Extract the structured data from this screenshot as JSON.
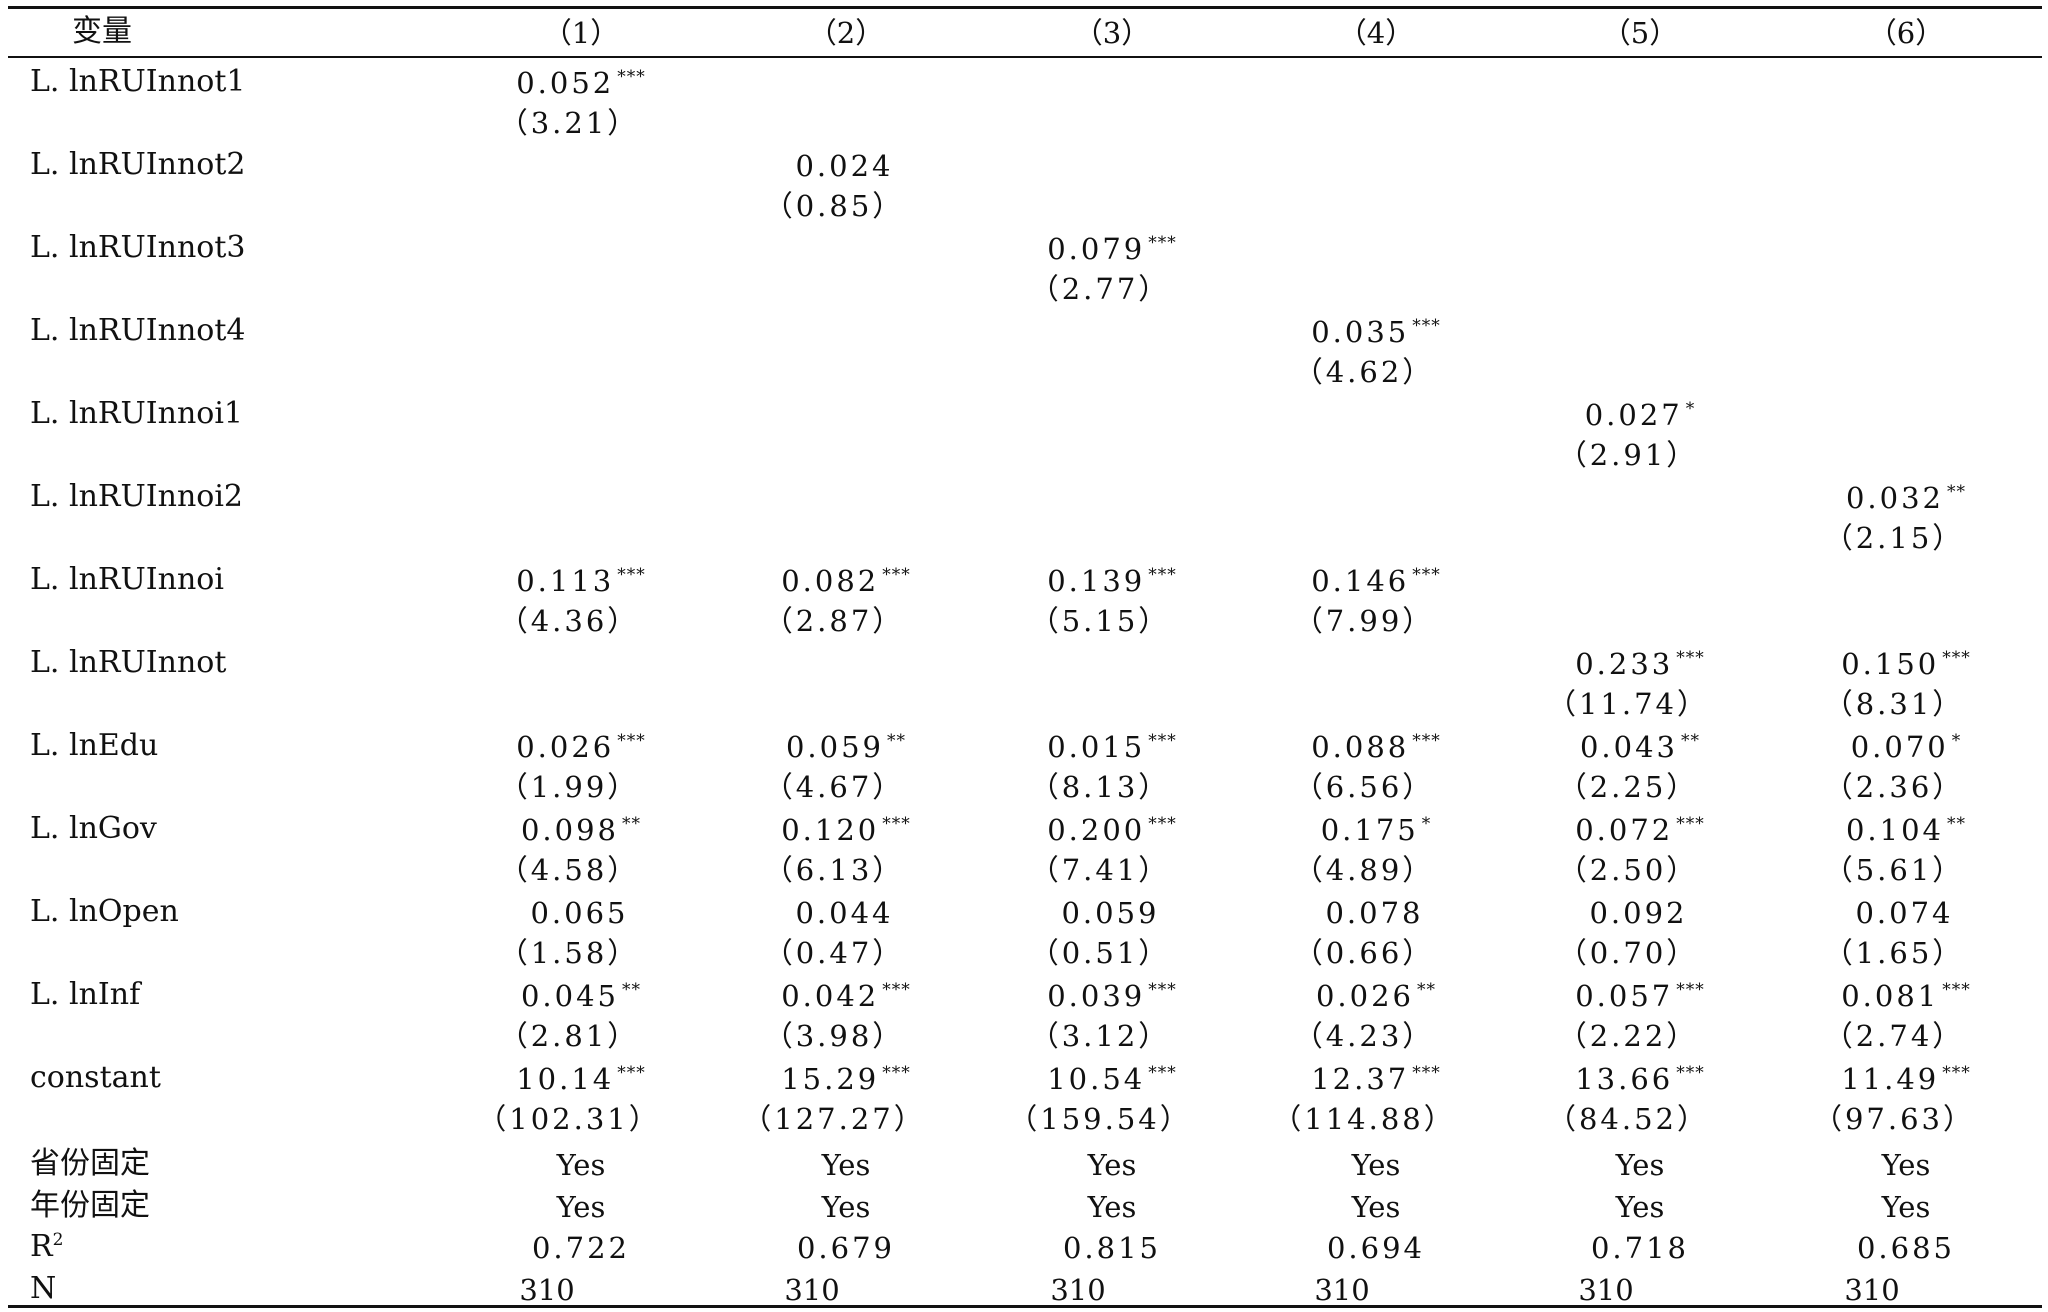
{
  "table": {
    "header": {
      "variable": "变量",
      "columns": [
        "（1）",
        "（2）",
        "（3）",
        "（4）",
        "（5）",
        "（6）"
      ]
    },
    "rows": [
      {
        "label": "L. lnRUInnot1",
        "coef": [
          {
            "v": "0.052",
            "s": "***"
          },
          null,
          null,
          null,
          null,
          null
        ],
        "se": [
          "（3.21）",
          null,
          null,
          null,
          null,
          null
        ]
      },
      {
        "label": "L. lnRUInnot2",
        "coef": [
          null,
          {
            "v": "0.024",
            "s": ""
          },
          null,
          null,
          null,
          null
        ],
        "se": [
          null,
          "（0.85）",
          null,
          null,
          null,
          null
        ]
      },
      {
        "label": "L. lnRUInnot3",
        "coef": [
          null,
          null,
          {
            "v": "0.079",
            "s": "***"
          },
          null,
          null,
          null
        ],
        "se": [
          null,
          null,
          "（2.77）",
          null,
          null,
          null
        ]
      },
      {
        "label": "L. lnRUInnot4",
        "coef": [
          null,
          null,
          null,
          {
            "v": "0.035",
            "s": "***"
          },
          null,
          null
        ],
        "se": [
          null,
          null,
          null,
          "（4.62）",
          null,
          null
        ]
      },
      {
        "label": "L. lnRUInnoi1",
        "coef": [
          null,
          null,
          null,
          null,
          {
            "v": "0.027",
            "s": "*"
          },
          null
        ],
        "se": [
          null,
          null,
          null,
          null,
          "（2.91）",
          null
        ]
      },
      {
        "label": "L. lnRUInnoi2",
        "coef": [
          null,
          null,
          null,
          null,
          null,
          {
            "v": "0.032",
            "s": "**"
          }
        ],
        "se": [
          null,
          null,
          null,
          null,
          null,
          "（2.15）"
        ]
      },
      {
        "label": "L. lnRUInnoi",
        "coef": [
          {
            "v": "0.113",
            "s": "***"
          },
          {
            "v": "0.082",
            "s": "***"
          },
          {
            "v": "0.139",
            "s": "***"
          },
          {
            "v": "0.146",
            "s": "***"
          },
          null,
          null
        ],
        "se": [
          "（4.36）",
          "（2.87）",
          "（5.15）",
          "（7.99）",
          null,
          null
        ]
      },
      {
        "label": "L. lnRUInnot",
        "coef": [
          null,
          null,
          null,
          null,
          {
            "v": "0.233",
            "s": "***"
          },
          {
            "v": "0.150",
            "s": "***"
          }
        ],
        "se": [
          null,
          null,
          null,
          null,
          "（11.74）",
          "（8.31）"
        ]
      },
      {
        "label": "L. lnEdu",
        "coef": [
          {
            "v": "0.026",
            "s": "***"
          },
          {
            "v": "0.059",
            "s": "**"
          },
          {
            "v": "0.015",
            "s": "***"
          },
          {
            "v": "0.088",
            "s": "***"
          },
          {
            "v": "0.043",
            "s": "**"
          },
          {
            "v": "0.070",
            "s": "*"
          }
        ],
        "se": [
          "（1.99）",
          "（4.67）",
          "（8.13）",
          "（6.56）",
          "（2.25）",
          "（2.36）"
        ]
      },
      {
        "label": "L. lnGov",
        "coef": [
          {
            "v": "0.098",
            "s": "**"
          },
          {
            "v": "0.120",
            "s": "***"
          },
          {
            "v": "0.200",
            "s": "***"
          },
          {
            "v": "0.175",
            "s": "*"
          },
          {
            "v": "0.072",
            "s": "***"
          },
          {
            "v": "0.104",
            "s": "**"
          }
        ],
        "se": [
          "（4.58）",
          "（6.13）",
          "（7.41）",
          "（4.89）",
          "（2.50）",
          "（5.61）"
        ]
      },
      {
        "label": "L. lnOpen",
        "coef": [
          {
            "v": "0.065",
            "s": ""
          },
          {
            "v": "0.044",
            "s": ""
          },
          {
            "v": "0.059",
            "s": ""
          },
          {
            "v": "0.078",
            "s": ""
          },
          {
            "v": "0.092",
            "s": ""
          },
          {
            "v": "0.074",
            "s": ""
          }
        ],
        "se": [
          "（1.58）",
          "（0.47）",
          "（0.51）",
          "（0.66）",
          "（0.70）",
          "（1.65）"
        ]
      },
      {
        "label": "L. lnInf",
        "coef": [
          {
            "v": "0.045",
            "s": "**"
          },
          {
            "v": "0.042",
            "s": "***"
          },
          {
            "v": "0.039",
            "s": "***"
          },
          {
            "v": "0.026",
            "s": "**"
          },
          {
            "v": "0.057",
            "s": "***"
          },
          {
            "v": "0.081",
            "s": "***"
          }
        ],
        "se": [
          "（2.81）",
          "（3.98）",
          "（3.12）",
          "（4.23）",
          "（2.22）",
          "（2.74）"
        ]
      },
      {
        "label": "constant",
        "coef": [
          {
            "v": "10.14",
            "s": "***"
          },
          {
            "v": "15.29",
            "s": "***"
          },
          {
            "v": "10.54",
            "s": "***"
          },
          {
            "v": "12.37",
            "s": "***"
          },
          {
            "v": "13.66",
            "s": "***"
          },
          {
            "v": "11.49",
            "s": "***"
          }
        ],
        "se": [
          "（102.31）",
          "（127.27）",
          "（159.54）",
          "（114.88）",
          "（84.52）",
          "（97.63）"
        ]
      }
    ],
    "footer": [
      {
        "label": "省份固定",
        "values": [
          "Yes",
          "Yes",
          "Yes",
          "Yes",
          "Yes",
          "Yes"
        ]
      },
      {
        "label": "年份固定",
        "values": [
          "Yes",
          "Yes",
          "Yes",
          "Yes",
          "Yes",
          "Yes"
        ]
      },
      {
        "label": "R",
        "label_sup": "2",
        "values": [
          "0.722",
          "0.679",
          "0.815",
          "0.694",
          "0.718",
          "0.685"
        ]
      },
      {
        "label": "N",
        "values": [
          "310",
          "310",
          "310",
          "310",
          "310",
          "310"
        ]
      }
    ]
  }
}
